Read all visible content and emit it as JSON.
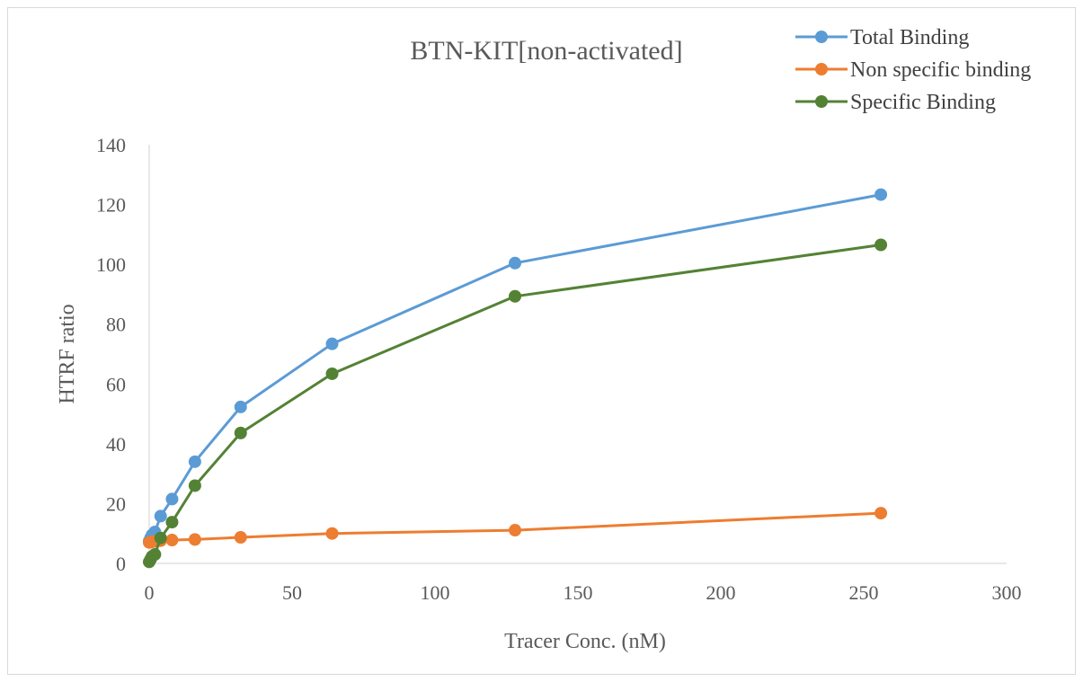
{
  "chart_data": {
    "type": "scatter",
    "title": "BTN-KIT[non-activated]",
    "xlabel": "Tracer Conc. (nM)",
    "ylabel": "HTRF ratio",
    "xlim": [
      0,
      300
    ],
    "ylim": [
      0,
      140
    ],
    "x_ticks": [
      "0",
      "50",
      "100",
      "150",
      "200",
      "250",
      "300"
    ],
    "y_ticks": [
      "0",
      "20",
      "40",
      "60",
      "80",
      "100",
      "120",
      "140"
    ],
    "grid": false,
    "legend_position": "top-right",
    "markers": true,
    "connect_lines": true,
    "series": [
      {
        "name": "Total Binding",
        "color": "#5b9bd5",
        "x": [
          0,
          0.5,
          1,
          2,
          4,
          8,
          16,
          32,
          64,
          128,
          256
        ],
        "y": [
          7.5,
          8.5,
          9.5,
          10.5,
          15.8,
          21.5,
          34.0,
          52.3,
          73.4,
          100.4,
          123.3
        ]
      },
      {
        "name": "Non specific binding",
        "color": "#ed7d31",
        "x": [
          0,
          0.5,
          1,
          2,
          4,
          8,
          16,
          32,
          64,
          128,
          256
        ],
        "y": [
          7.0,
          7.1,
          7.2,
          7.4,
          7.6,
          7.8,
          8.0,
          8.7,
          10.0,
          11.1,
          16.8
        ]
      },
      {
        "name": "Specific Binding",
        "color": "#548235",
        "x": [
          0,
          0.5,
          1,
          2,
          4,
          8,
          16,
          32,
          64,
          128,
          256
        ],
        "y": [
          0.5,
          1.4,
          2.3,
          3.0,
          8.5,
          13.8,
          26.0,
          43.6,
          63.4,
          89.3,
          106.5
        ]
      }
    ]
  }
}
